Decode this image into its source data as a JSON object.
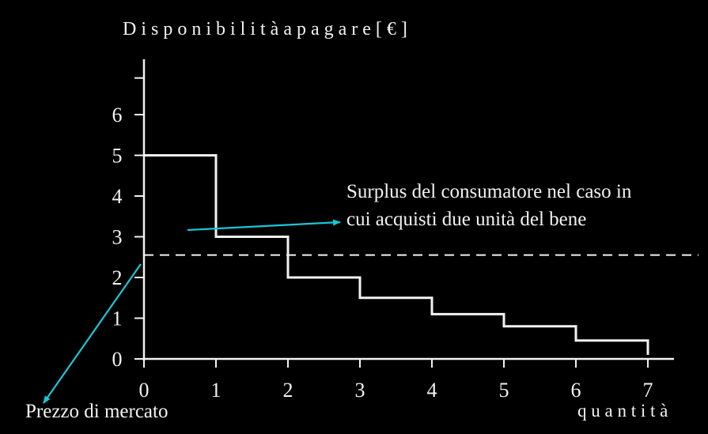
{
  "chart_data": {
    "type": "line",
    "step": true,
    "ylabel": "D i s p o n i b i l i t à   a   p a g a r e [ € ]",
    "xlabel": "q u a n t i t à",
    "xlim": [
      0,
      7
    ],
    "ylim": [
      0,
      6.6
    ],
    "x_ticks": [
      "0",
      "1",
      "2",
      "3",
      "4",
      "5",
      "6",
      "7"
    ],
    "y_ticks": [
      "0",
      "1",
      "2",
      "3",
      "4",
      "5",
      "6"
    ],
    "grid": false,
    "series": [
      {
        "x": [
          0,
          1,
          1,
          2,
          2,
          3,
          3,
          4,
          4,
          5,
          5,
          6,
          6,
          7,
          7
        ],
        "y": [
          5,
          5,
          3,
          3,
          2,
          2,
          1.5,
          1.5,
          1.1,
          1.1,
          0.8,
          0.8,
          0.45,
          0.45,
          0.1
        ]
      }
    ],
    "market_price": 2.55,
    "annotations": {
      "surplus_line1": "Surplus del consumatore nel caso in",
      "surplus_line2": "cui acquisti due unità del bene",
      "market_price_label": "Prezzo di mercato"
    },
    "colors": {
      "background": "#000000",
      "foreground": "#f2f2f2",
      "arrow": "#19c7d6"
    }
  }
}
